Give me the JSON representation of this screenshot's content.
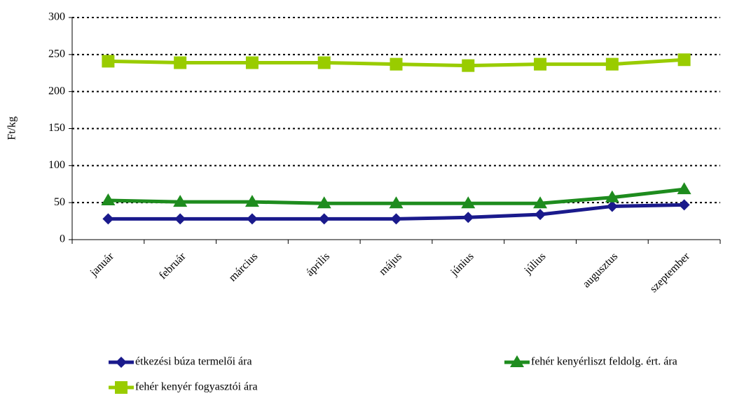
{
  "chart_data": {
    "type": "line",
    "y_label": "Ft/kg",
    "categories": [
      "január",
      "február",
      "március",
      "április",
      "május",
      "június",
      "július",
      "augusztus",
      "szeptember"
    ],
    "series": [
      {
        "name": "étkezési búza termelői ára",
        "color": "#1a1a8c",
        "marker": "diamond",
        "values": [
          28,
          28,
          28,
          28,
          28,
          30,
          34,
          45,
          47
        ]
      },
      {
        "name": "fehér kenyérliszt feldolg. ért. ára",
        "color": "#1e8c1e",
        "marker": "triangle",
        "values": [
          53,
          51,
          51,
          49,
          49,
          49,
          49,
          57,
          68
        ]
      },
      {
        "name": "fehér kenyér fogyasztói ára",
        "color": "#99cc00",
        "marker": "square",
        "values": [
          241,
          239,
          239,
          239,
          237,
          235,
          237,
          237,
          243
        ]
      }
    ],
    "ylim": [
      0,
      300
    ],
    "yticks": [
      0,
      50,
      100,
      150,
      200,
      250,
      300
    ],
    "grid": true,
    "legend": "bottom"
  }
}
